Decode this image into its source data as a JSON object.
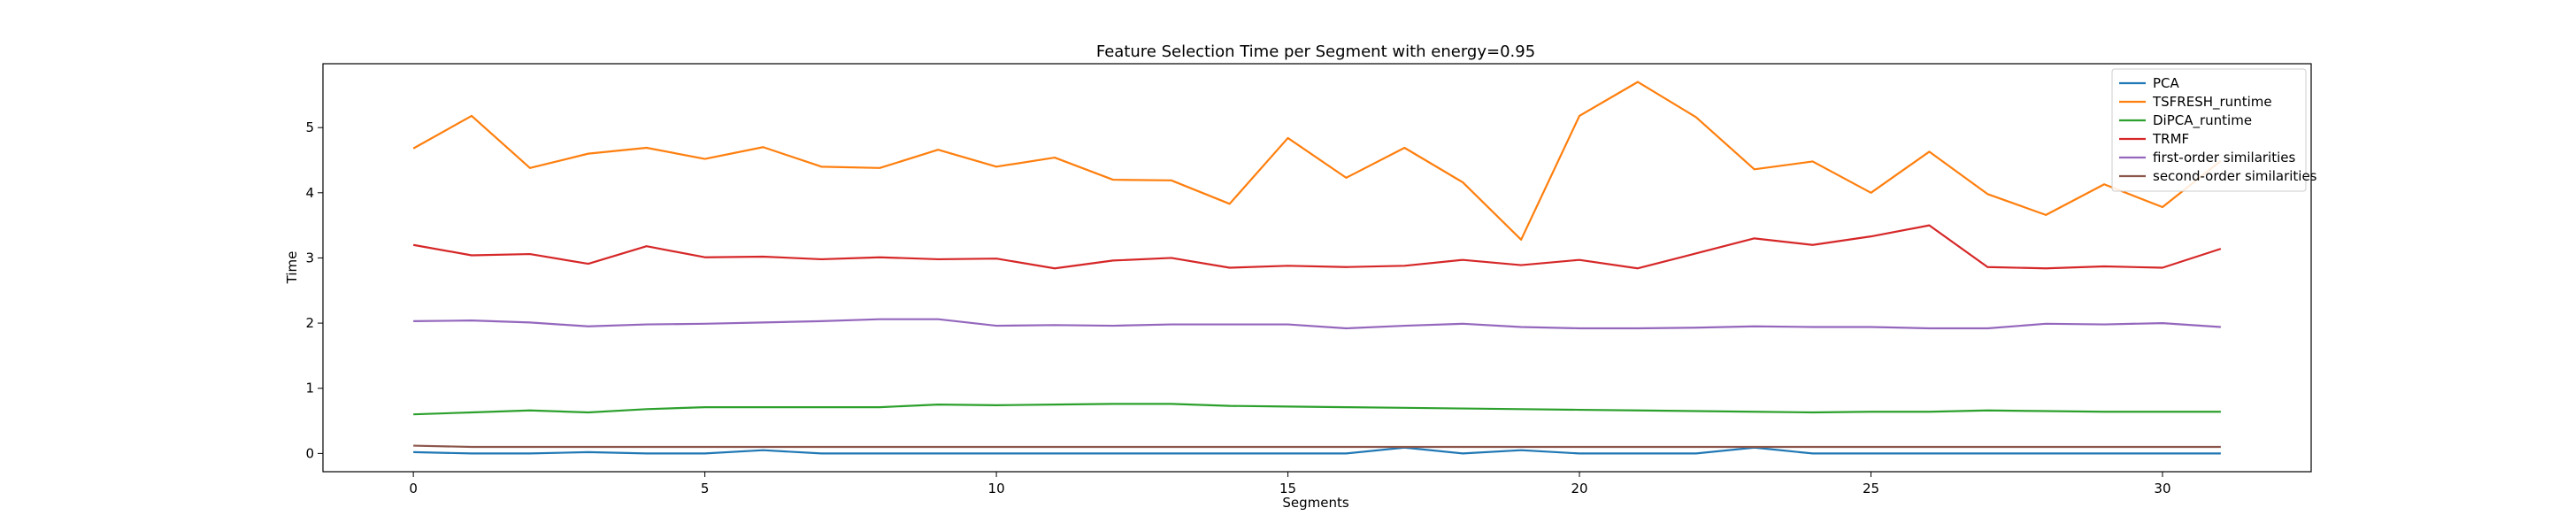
{
  "chart_data": {
    "type": "line",
    "title": "Feature Selection Time per Segment with energy=0.95",
    "xlabel": "Segments",
    "ylabel": "Time",
    "xlim": [
      -1.55,
      32.55
    ],
    "ylim": [
      -0.28,
      5.98
    ],
    "xticks": [
      0,
      5,
      10,
      15,
      20,
      25,
      30
    ],
    "yticks": [
      0,
      1,
      2,
      3,
      4,
      5
    ],
    "grid": false,
    "legend_position": "top-right",
    "x": [
      0,
      1,
      2,
      3,
      4,
      5,
      6,
      7,
      8,
      9,
      10,
      11,
      12,
      13,
      14,
      15,
      16,
      17,
      18,
      19,
      20,
      21,
      22,
      23,
      24,
      25,
      26,
      27,
      28,
      29,
      30,
      31
    ],
    "series": [
      {
        "name": "PCA",
        "color": "#1f77b4",
        "values": [
          0.02,
          0.0,
          0.0,
          0.02,
          0.0,
          0.0,
          0.05,
          0.0,
          0.0,
          0.0,
          0.0,
          0.0,
          0.0,
          0.0,
          0.0,
          0.0,
          0.0,
          0.09,
          0.0,
          0.05,
          0.0,
          0.0,
          0.0,
          0.09,
          0.0,
          0.0,
          0.0,
          0.0,
          0.0,
          0.0,
          0.0,
          0.0
        ]
      },
      {
        "name": "TSFRESH_runtime",
        "color": "#ff7f0e",
        "values": [
          4.68,
          5.18,
          4.38,
          4.6,
          4.69,
          4.52,
          4.7,
          4.4,
          4.38,
          4.66,
          4.4,
          4.54,
          4.2,
          4.19,
          3.83,
          4.84,
          4.23,
          4.69,
          4.16,
          3.28,
          5.18,
          5.7,
          5.16,
          4.36,
          4.48,
          4.0,
          4.63,
          3.98,
          3.66,
          4.13,
          3.78,
          4.49
        ]
      },
      {
        "name": "DiPCA_runtime",
        "color": "#2ca02c",
        "values": [
          0.6,
          0.63,
          0.66,
          0.63,
          0.68,
          0.71,
          0.71,
          0.71,
          0.71,
          0.75,
          0.74,
          0.75,
          0.76,
          0.76,
          0.73,
          0.72,
          0.71,
          0.7,
          0.69,
          0.68,
          0.67,
          0.66,
          0.65,
          0.64,
          0.63,
          0.64,
          0.64,
          0.66,
          0.65,
          0.64,
          0.64,
          0.64
        ]
      },
      {
        "name": "TRMF",
        "color": "#d62728",
        "values": [
          3.2,
          3.04,
          3.06,
          2.91,
          3.18,
          3.01,
          3.02,
          2.98,
          3.01,
          2.98,
          2.99,
          2.84,
          2.96,
          3.0,
          2.85,
          2.88,
          2.86,
          2.88,
          2.97,
          2.89,
          2.97,
          2.84,
          3.07,
          3.3,
          3.2,
          3.33,
          3.5,
          2.86,
          2.84,
          2.87,
          2.85,
          3.14
        ]
      },
      {
        "name": "first-order similarities",
        "color": "#9467bd",
        "values": [
          2.03,
          2.04,
          2.01,
          1.95,
          1.98,
          1.99,
          2.01,
          2.03,
          2.06,
          2.06,
          1.96,
          1.97,
          1.96,
          1.98,
          1.98,
          1.98,
          1.92,
          1.96,
          1.99,
          1.94,
          1.92,
          1.92,
          1.93,
          1.95,
          1.94,
          1.94,
          1.92,
          1.92,
          1.99,
          1.98,
          2.0,
          1.94
        ]
      },
      {
        "name": "second-order similarities",
        "color": "#8c564b",
        "values": [
          0.12,
          0.1,
          0.1,
          0.1,
          0.1,
          0.1,
          0.1,
          0.1,
          0.1,
          0.1,
          0.1,
          0.1,
          0.1,
          0.1,
          0.1,
          0.1,
          0.1,
          0.1,
          0.1,
          0.1,
          0.1,
          0.1,
          0.1,
          0.1,
          0.1,
          0.1,
          0.1,
          0.1,
          0.1,
          0.1,
          0.1,
          0.1
        ]
      }
    ]
  }
}
